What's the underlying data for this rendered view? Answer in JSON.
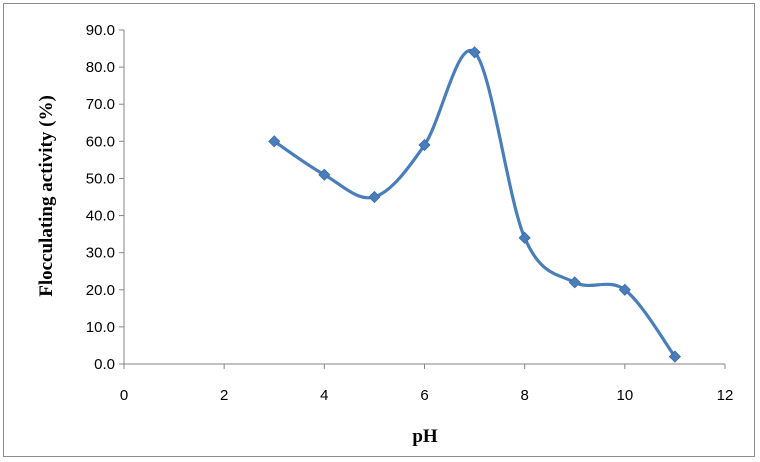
{
  "chart_data": {
    "type": "line",
    "title": "",
    "xlabel": "pH",
    "ylabel": "Flocculating activity (%)",
    "xlim": [
      0,
      12
    ],
    "ylim": [
      0,
      90
    ],
    "x_ticks": [
      "0",
      "2",
      "4",
      "6",
      "8",
      "10",
      "12"
    ],
    "y_ticks": [
      "0.0",
      "10.0",
      "20.0",
      "30.0",
      "40.0",
      "50.0",
      "60.0",
      "70.0",
      "80.0",
      "90.0"
    ],
    "grid": false,
    "smoothed": true,
    "series": [
      {
        "color": "#4a7ebb",
        "x": [
          3,
          4,
          5,
          6,
          7,
          8,
          9,
          10,
          11
        ],
        "y": [
          60,
          51,
          45,
          59,
          84,
          34,
          22,
          20,
          2
        ]
      }
    ]
  }
}
